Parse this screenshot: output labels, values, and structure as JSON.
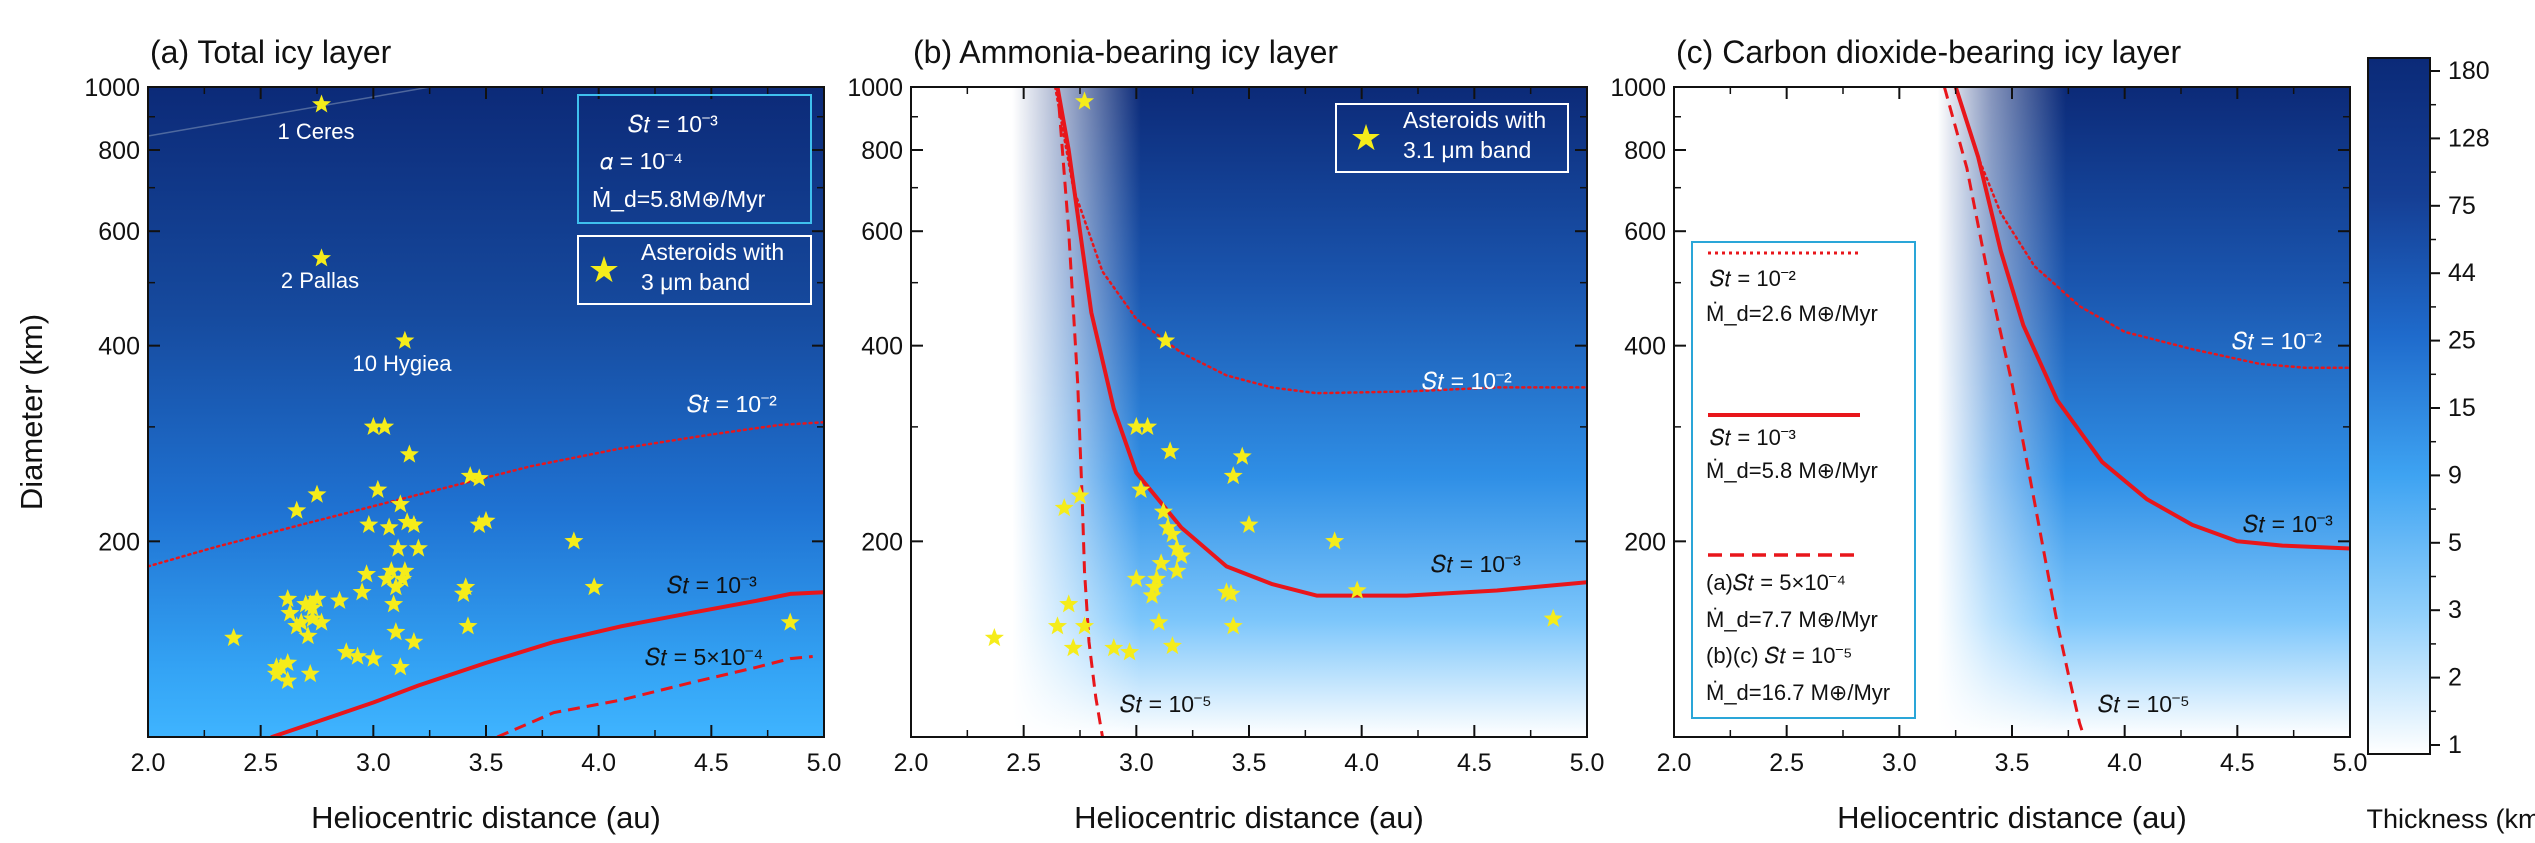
{
  "colors": {
    "icy_dark": "#0b2a78",
    "icy_mid": "#1f6fd6",
    "icy_light": "#3fb2ff",
    "curve": "#e8161b",
    "star": "#f5ec1a",
    "legend_frame": "#2aa6d8"
  },
  "chart_data": [
    {
      "type": "heatmap",
      "panel": "a",
      "title": "(a) Total icy layer",
      "xlabel": "Heliocentric distance (au)",
      "ylabel": "Diameter (km)",
      "xlim": [
        2.0,
        5.0
      ],
      "ylim": [
        100,
        1000
      ],
      "yscale": "log",
      "xticks": [
        "2.0",
        "2.5",
        "3.0",
        "3.5",
        "4.0",
        "4.5",
        "5.0"
      ],
      "yticks": [
        "200",
        "400",
        "600",
        "800",
        "1000"
      ],
      "params_box": {
        "st": "𝑆𝑡 = 10⁻³",
        "alpha": "𝛼 = 10⁻⁴",
        "mdot": "Ṁ_d=5.8M⊕/Myr"
      },
      "legend": {
        "symbol": "★",
        "label_line1": "Asteroids with",
        "label_line2": "3 μm band"
      },
      "named_asteroids": [
        {
          "name": "1 Ceres",
          "x": 2.77,
          "y": 940
        },
        {
          "name": "2 Pallas",
          "x": 2.77,
          "y": 545
        },
        {
          "name": "10 Hygiea",
          "x": 3.14,
          "y": 407
        }
      ],
      "asteroids": [
        [
          2.38,
          142
        ],
        [
          2.57,
          125
        ],
        [
          2.57,
          128
        ],
        [
          2.59,
          128
        ],
        [
          2.62,
          130
        ],
        [
          2.62,
          163
        ],
        [
          2.62,
          122
        ],
        [
          2.63,
          155
        ],
        [
          2.66,
          148
        ],
        [
          2.66,
          223
        ],
        [
          2.68,
          150
        ],
        [
          2.7,
          160
        ],
        [
          2.71,
          143
        ],
        [
          2.72,
          125
        ],
        [
          2.72,
          160
        ],
        [
          2.73,
          158
        ],
        [
          2.73,
          152
        ],
        [
          2.75,
          236
        ],
        [
          2.75,
          163
        ],
        [
          2.77,
          150
        ],
        [
          2.85,
          162
        ],
        [
          2.88,
          135
        ],
        [
          2.93,
          133
        ],
        [
          2.95,
          167
        ],
        [
          2.97,
          178
        ],
        [
          2.98,
          212
        ],
        [
          3.0,
          132
        ],
        [
          3.0,
          300
        ],
        [
          3.02,
          240
        ],
        [
          3.05,
          300
        ],
        [
          3.06,
          175
        ],
        [
          3.07,
          210
        ],
        [
          3.08,
          180
        ],
        [
          3.09,
          160
        ],
        [
          3.1,
          170
        ],
        [
          3.1,
          145
        ],
        [
          3.11,
          195
        ],
        [
          3.12,
          228
        ],
        [
          3.12,
          128
        ],
        [
          3.13,
          175
        ],
        [
          3.14,
          180
        ],
        [
          3.15,
          214
        ],
        [
          3.16,
          272
        ],
        [
          3.18,
          140
        ],
        [
          3.18,
          212
        ],
        [
          3.2,
          195
        ],
        [
          3.4,
          166
        ],
        [
          3.41,
          170
        ],
        [
          3.42,
          148
        ],
        [
          3.43,
          252
        ],
        [
          3.47,
          250
        ],
        [
          3.47,
          212
        ],
        [
          3.5,
          215
        ],
        [
          3.89,
          200
        ],
        [
          3.98,
          170
        ],
        [
          4.85,
          150
        ]
      ],
      "series": [
        {
          "name": "St=10⁻²",
          "style": "dotted",
          "label": "𝑆𝑡 = 10⁻²",
          "x": [
            2.0,
            2.3,
            2.7,
            3.2,
            3.7,
            4.1,
            4.5,
            4.8,
            5.0
          ],
          "y": [
            183,
            196,
            213,
            236,
            261,
            278,
            292,
            302,
            305
          ]
        },
        {
          "name": "St=10⁻³",
          "style": "solid",
          "label": "𝑆𝑡 = 10⁻³",
          "x": [
            2.55,
            2.8,
            3.0,
            3.2,
            3.5,
            3.8,
            4.1,
            4.4,
            4.7,
            4.85,
            5.0
          ],
          "y": [
            100,
            107,
            113,
            120,
            130,
            140,
            148,
            155,
            162,
            166,
            167
          ]
        },
        {
          "name": "St=5×10⁻⁴",
          "style": "dashed",
          "label": "𝑆𝑡 = 5×10⁻⁴",
          "x": [
            3.55,
            3.8,
            4.1,
            4.4,
            4.7,
            4.85,
            4.95
          ],
          "y": [
            100,
            109,
            114,
            121,
            128,
            132,
            133
          ]
        }
      ]
    },
    {
      "type": "heatmap",
      "panel": "b",
      "title": "(b) Ammonia-bearing icy layer",
      "xlabel": "Heliocentric distance (au)",
      "ylabel": "",
      "xlim": [
        2.0,
        5.0
      ],
      "ylim": [
        100,
        1000
      ],
      "yscale": "log",
      "xticks": [
        "2.0",
        "2.5",
        "3.0",
        "3.5",
        "4.0",
        "4.5",
        "5.0"
      ],
      "yticks": [
        "200",
        "400",
        "600",
        "800",
        "1000"
      ],
      "legend": {
        "symbol": "★",
        "label_line1": "Asteroids with",
        "label_line2": "3.1 μm band"
      },
      "asteroids": [
        [
          2.37,
          142
        ],
        [
          2.65,
          148
        ],
        [
          2.68,
          225
        ],
        [
          2.7,
          160
        ],
        [
          2.72,
          137
        ],
        [
          2.75,
          235
        ],
        [
          2.77,
          148
        ],
        [
          2.77,
          950
        ],
        [
          2.9,
          137
        ],
        [
          2.97,
          135
        ],
        [
          3.0,
          175
        ],
        [
          3.0,
          300
        ],
        [
          3.02,
          240
        ],
        [
          3.05,
          300
        ],
        [
          3.07,
          165
        ],
        [
          3.08,
          170
        ],
        [
          3.09,
          175
        ],
        [
          3.1,
          150
        ],
        [
          3.11,
          185
        ],
        [
          3.12,
          222
        ],
        [
          3.13,
          407
        ],
        [
          3.14,
          210
        ],
        [
          3.15,
          275
        ],
        [
          3.16,
          205
        ],
        [
          3.16,
          138
        ],
        [
          3.18,
          180
        ],
        [
          3.18,
          195
        ],
        [
          3.2,
          190
        ],
        [
          3.4,
          167
        ],
        [
          3.42,
          166
        ],
        [
          3.43,
          148
        ],
        [
          3.43,
          252
        ],
        [
          3.47,
          270
        ],
        [
          3.5,
          212
        ],
        [
          3.88,
          200
        ],
        [
          3.98,
          168
        ],
        [
          4.85,
          152
        ]
      ],
      "series": [
        {
          "name": "St=10⁻²",
          "style": "dotted",
          "label": "𝑆𝑡 = 10⁻²",
          "x": [
            2.64,
            2.72,
            2.85,
            3.0,
            3.2,
            3.4,
            3.6,
            3.8,
            4.2,
            4.6,
            5.0
          ],
          "y": [
            1000,
            700,
            520,
            440,
            390,
            360,
            345,
            338,
            340,
            345,
            345
          ]
        },
        {
          "name": "St=10⁻³",
          "style": "solid",
          "label": "𝑆𝑡 = 10⁻³",
          "x": [
            2.65,
            2.7,
            2.75,
            2.8,
            2.9,
            3.0,
            3.2,
            3.4,
            3.6,
            3.8,
            4.2,
            4.6,
            5.0
          ],
          "y": [
            1000,
            800,
            600,
            450,
            320,
            255,
            210,
            183,
            172,
            165,
            165,
            168,
            173
          ]
        },
        {
          "name": "St=10⁻⁵",
          "style": "dashed",
          "label": "𝑆𝑡 = 10⁻⁵",
          "x": [
            2.65,
            2.7,
            2.74,
            2.76,
            2.77,
            2.79,
            2.82,
            2.85
          ],
          "y": [
            1000,
            600,
            350,
            230,
            180,
            140,
            115,
            100
          ]
        }
      ]
    },
    {
      "type": "heatmap",
      "panel": "c",
      "title": "(c) Carbon dioxide-bearing icy layer",
      "xlabel": "Heliocentric distance (au)",
      "ylabel": "",
      "xlim": [
        2.0,
        5.0
      ],
      "ylim": [
        100,
        1000
      ],
      "yscale": "log",
      "xticks": [
        "2.0",
        "2.5",
        "3.0",
        "3.5",
        "4.0",
        "4.5",
        "5.0"
      ],
      "yticks": [
        "200",
        "400",
        "600",
        "800",
        "1000"
      ],
      "series": [
        {
          "name": "St=10⁻²",
          "style": "dotted",
          "label": "𝑆𝑡 = 10⁻²",
          "x": [
            3.25,
            3.35,
            3.45,
            3.6,
            3.8,
            4.0,
            4.3,
            4.6,
            4.8,
            5.0
          ],
          "y": [
            1000,
            780,
            640,
            530,
            460,
            420,
            395,
            375,
            370,
            370
          ]
        },
        {
          "name": "St=10⁻³",
          "style": "solid",
          "label": "𝑆𝑡 = 10⁻³",
          "x": [
            3.25,
            3.35,
            3.45,
            3.55,
            3.7,
            3.9,
            4.1,
            4.3,
            4.5,
            4.7,
            5.0
          ],
          "y": [
            1000,
            780,
            560,
            430,
            330,
            265,
            232,
            212,
            200,
            197,
            195
          ]
        },
        {
          "name": "St=10⁻⁵",
          "style": "dashed",
          "label": "𝑆𝑡 = 10⁻⁵",
          "x": [
            3.2,
            3.3,
            3.4,
            3.5,
            3.6,
            3.7,
            3.75,
            3.8,
            3.82
          ],
          "y": [
            1000,
            750,
            500,
            350,
            230,
            150,
            125,
            105,
            100
          ]
        }
      ],
      "legend_entries": [
        {
          "style": "dotted",
          "line1": "𝑆𝑡 = 10⁻²",
          "line2": "Ṁ_d=2.6 M⊕/Myr"
        },
        {
          "style": "solid",
          "line1": "𝑆𝑡 = 10⁻³",
          "line2": "Ṁ_d=5.8 M⊕/Myr"
        },
        {
          "style": "dashed",
          "line1": "(a)𝑆𝑡 = 5×10⁻⁴",
          "line2": "Ṁ_d=7.7 M⊕/Myr",
          "line3": "(b)(c) 𝑆𝑡 = 10⁻⁵",
          "line4": "Ṁ_d=16.7 M⊕/Myr"
        }
      ]
    }
  ],
  "colorbar": {
    "label": "Thickness (km)",
    "ticks": [
      "1",
      "2",
      "3",
      "5",
      "9",
      "15",
      "25",
      "44",
      "75",
      "128",
      "180"
    ]
  }
}
